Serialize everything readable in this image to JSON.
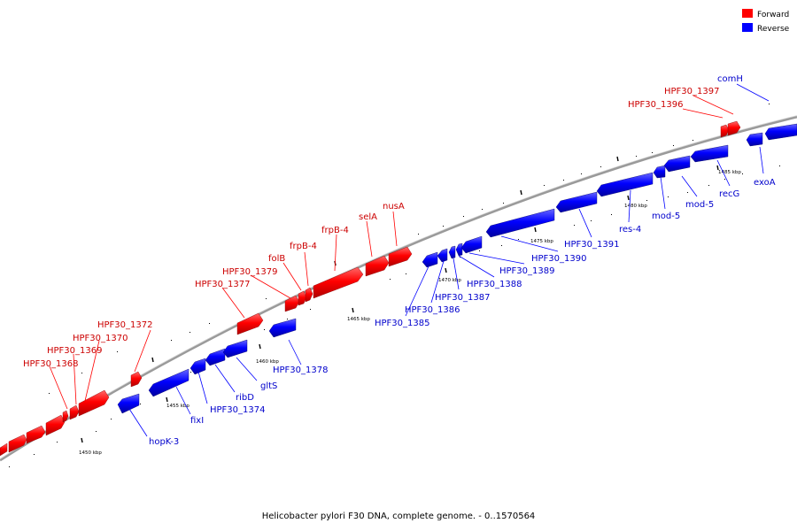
{
  "legend": [
    {
      "label": "Forward",
      "color": "#ff0000"
    },
    {
      "label": "Reverse",
      "color": "#0000ff"
    }
  ],
  "colors": {
    "forward": "#ff0000",
    "reverse": "#0000ff",
    "backbone": "#999999",
    "tick": "#000000"
  },
  "caption": "Helicobacter pylori F30 DNA, complete genome. - 0..1570564",
  "scale_labels": [
    "1450 kbp",
    "1455 kbp",
    "1460 kbp",
    "1465 kbp",
    "1470 kbp",
    "1475 kbp",
    "1480 kbp",
    "1485 kbp"
  ],
  "forward_labels": [
    "HPF30_1368",
    "HPF30_1369",
    "HPF30_1370",
    "HPF30_1372",
    "HPF30_1377",
    "HPF30_1379",
    "folB",
    "frpB-4",
    "frpB-4",
    "selA",
    "nusA",
    "HPF30_1396",
    "HPF30_1397"
  ],
  "reverse_labels": [
    "hopK-3",
    "fixI",
    "HPF30_1374",
    "ribD",
    "gltS",
    "HPF30_1378",
    "HPF30_1385",
    "HPF30_1386",
    "HPF30_1387",
    "HPF30_1388",
    "HPF30_1389",
    "HPF30_1390",
    "HPF30_1391",
    "res-4",
    "mod-5",
    "mod-5",
    "recG",
    "exoA",
    "comH"
  ]
}
